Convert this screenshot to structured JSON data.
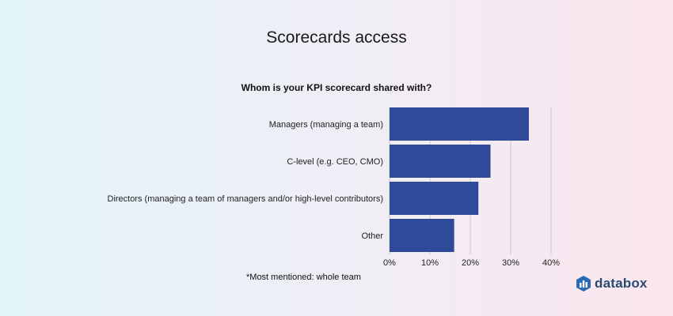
{
  "title": "Scorecards access",
  "footnote": "*Most mentioned: whole team",
  "brand": {
    "name": "databox",
    "icon": "databox-logo-icon",
    "color": "#2a4a72"
  },
  "colors": {
    "bar": "#2e4a99",
    "grid": "#c8c8cc"
  },
  "chart_data": {
    "type": "bar",
    "orientation": "horizontal",
    "title": "Whom is your KPI scorecard shared with?",
    "categories": [
      "Managers (managing a team)",
      "C-level (e.g. CEO, CMO)",
      "Directors (managing a team of managers and/or high-level contributors)",
      "Other"
    ],
    "values": [
      34.5,
      25,
      22,
      16
    ],
    "unit": "%",
    "xlim": [
      0,
      40
    ],
    "xticks": [
      "0%",
      "10%",
      "20%",
      "30%",
      "40%"
    ],
    "grid": true,
    "legend": "none"
  }
}
